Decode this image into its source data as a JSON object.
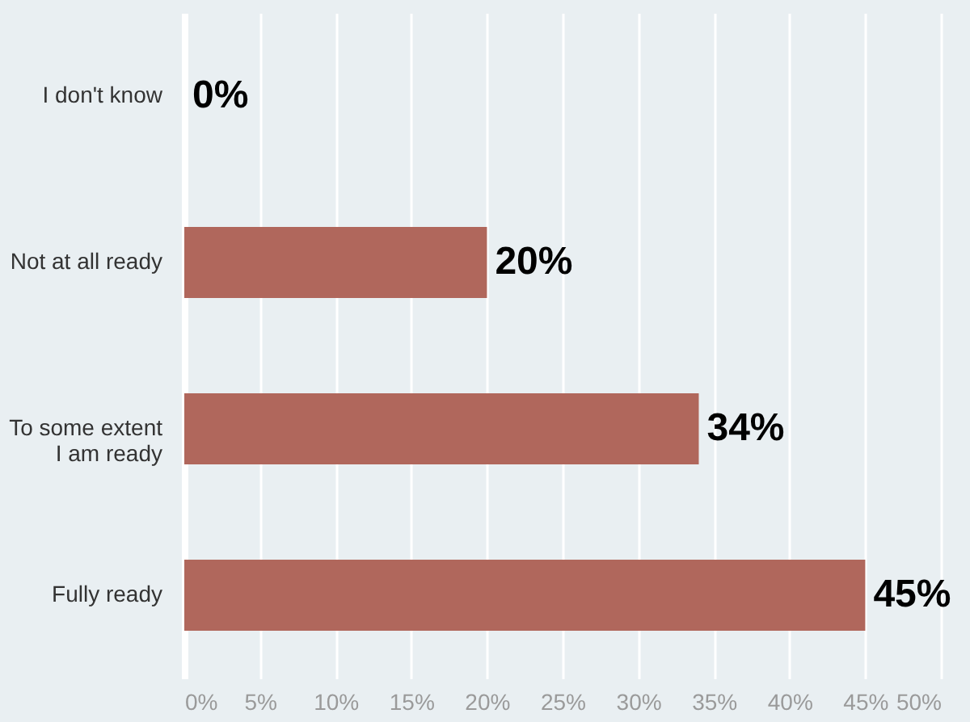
{
  "chart_data": {
    "type": "bar",
    "orientation": "horizontal",
    "categories": [
      "I don't know",
      "Not at all ready",
      "To some extent\nI am ready",
      "Fully ready"
    ],
    "values": [
      0,
      20,
      34,
      45
    ],
    "value_labels": [
      "0%",
      "20%",
      "34%",
      "45%"
    ],
    "color": "#b0675c",
    "xlim": [
      0,
      50
    ],
    "xticks": [
      {
        "value": 0,
        "label": "0%"
      },
      {
        "value": 5,
        "label": "5%"
      },
      {
        "value": 10,
        "label": "10%"
      },
      {
        "value": 15,
        "label": "15%"
      },
      {
        "value": 20,
        "label": "20%"
      },
      {
        "value": 25,
        "label": "25%"
      },
      {
        "value": 30,
        "label": "30%"
      },
      {
        "value": 35,
        "label": "35%"
      },
      {
        "value": 40,
        "label": "40%"
      },
      {
        "value": 45,
        "label": "45%"
      },
      {
        "value": 50,
        "label": "50%"
      }
    ],
    "grid": "x"
  }
}
